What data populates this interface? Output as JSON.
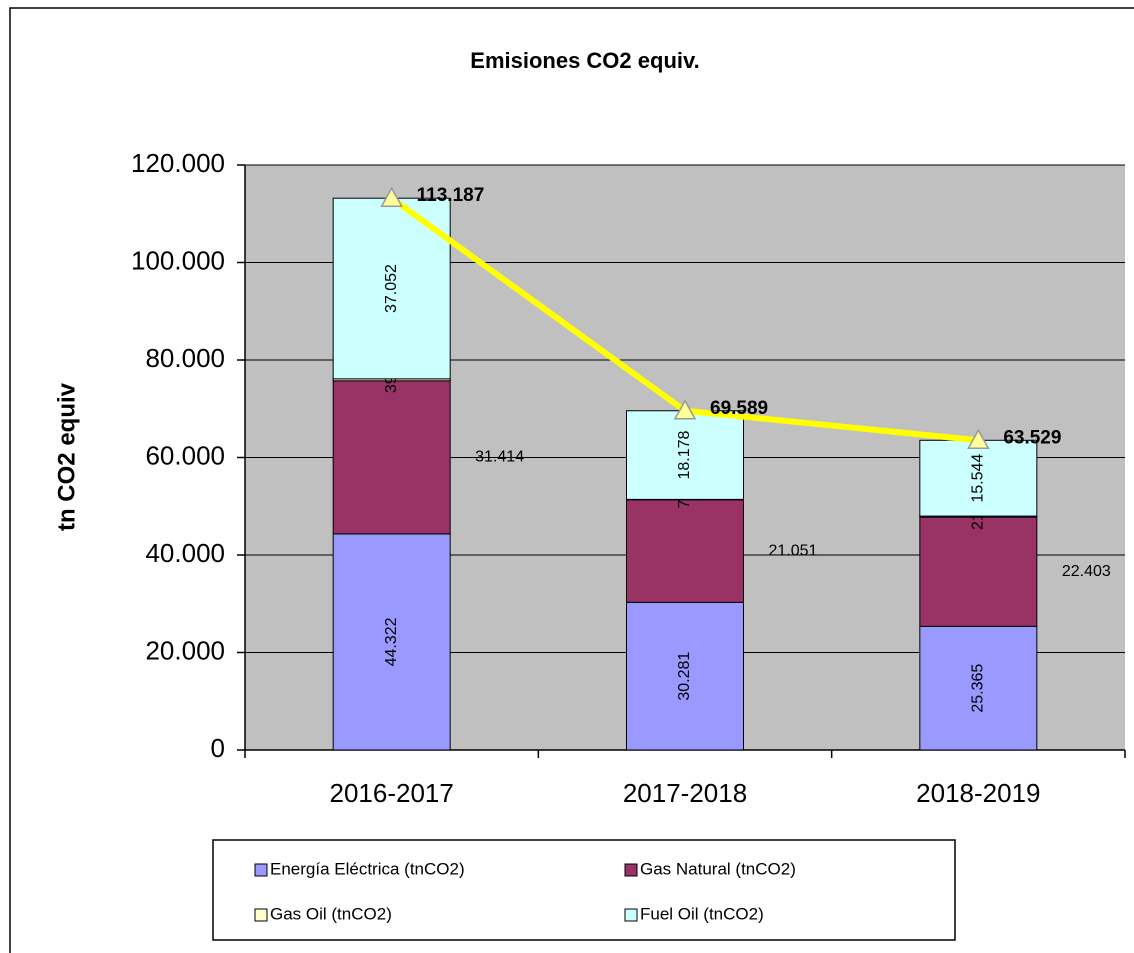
{
  "chart_data": {
    "type": "stacked_bar_line",
    "title": "Emisiones CO2 equiv.",
    "y_label": "tn CO2 equiv",
    "categories": [
      "2016-2017",
      "2017-2018",
      "2018-2019"
    ],
    "series": [
      {
        "name": "Energía Eléctrica (tnCO2)",
        "color": "#9999ff",
        "values": [
          44322,
          30281,
          25365
        ],
        "value_labels": [
          "44.322",
          "30.281",
          "25.365"
        ]
      },
      {
        "name": "Gas Natural (tnCO2)",
        "color": "#993366",
        "values": [
          31414,
          21051,
          22403
        ],
        "value_labels": [
          "31.414",
          "21.051",
          "22.403"
        ]
      },
      {
        "name": "Gas Oil (tnCO2)",
        "color": "#ffffcc",
        "values": [
          399,
          79,
          217
        ],
        "value_labels": [
          "399",
          "79",
          "217"
        ]
      },
      {
        "name": "Fuel Oil (tnCO2)",
        "color": "#ccffff",
        "values": [
          37052,
          18178,
          15544
        ],
        "value_labels": [
          "37.052",
          "18.178",
          "15.544"
        ]
      }
    ],
    "line": {
      "color": "#ffff00",
      "values": [
        113187,
        69589,
        63529
      ],
      "value_labels": [
        "113.187",
        "69.589",
        "63.529"
      ]
    },
    "ylim": [
      0,
      120000
    ],
    "yticks": [
      0,
      {
        "value": 20000,
        "label": "20.000"
      },
      {
        "value": 40000,
        "label": "40.000"
      },
      {
        "value": 60000,
        "label": "60.000"
      },
      {
        "value": 80000,
        "label": "80.000"
      },
      {
        "value": 100000,
        "label": "100.000"
      },
      {
        "value": 120000,
        "label": "120.000"
      }
    ],
    "grid": true
  }
}
